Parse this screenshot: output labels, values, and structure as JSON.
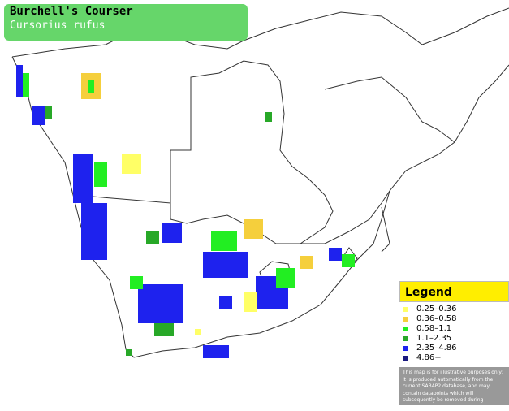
{
  "header": {
    "title": "Burchell's Courser",
    "subtitle": "Cursorius rufus"
  },
  "legend": {
    "title": "Legend",
    "items": [
      {
        "label": "0.25–0.36",
        "color": "#ffff66"
      },
      {
        "label": "0.36–0.58",
        "color": "#f5cf3c"
      },
      {
        "label": "0.58–1.1",
        "color": "#22ee22"
      },
      {
        "label": "1.1–2.35",
        "color": "#28a828"
      },
      {
        "label": "2.35–4.86",
        "color": "#1e22ee"
      },
      {
        "label": "4.86+",
        "color": "#1a1a80"
      }
    ],
    "disclaimer": "This map is for illustrative purposes only; it is produced automatically from the current SABAP2 database, and may contain datapoints which will subsequently be removed during checking operations."
  }
}
